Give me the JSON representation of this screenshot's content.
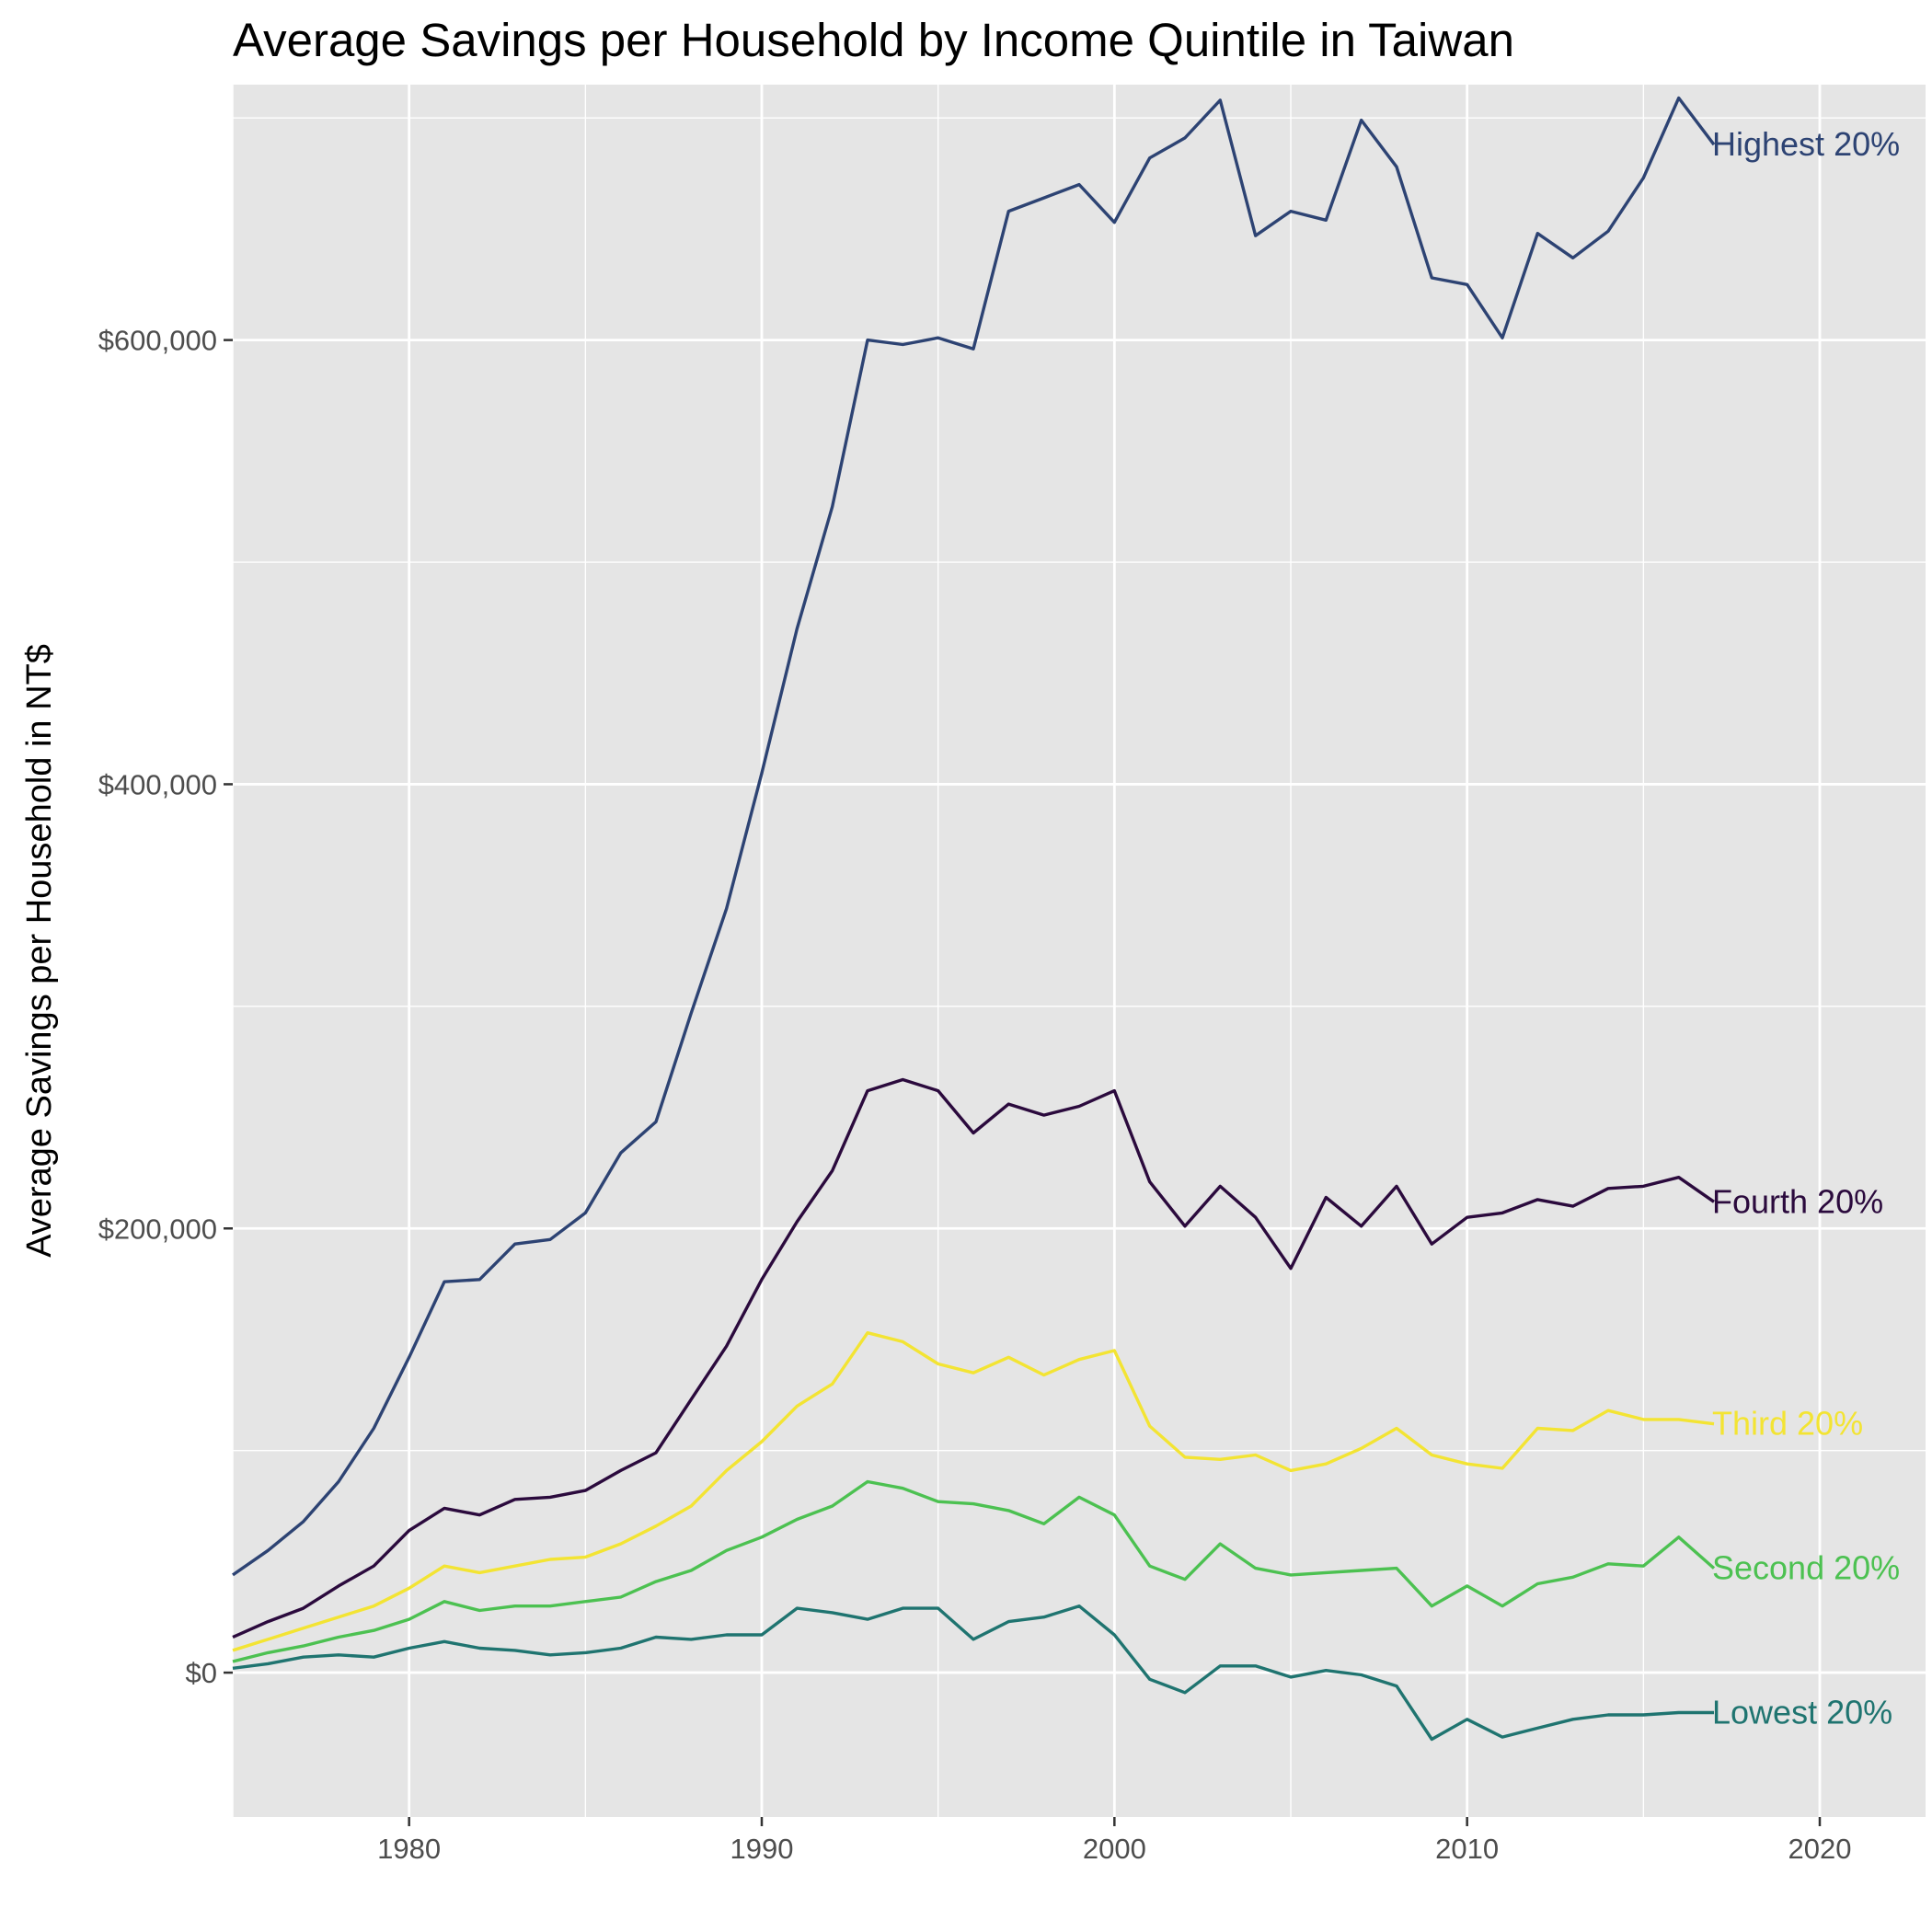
{
  "chart_data": {
    "type": "line",
    "title": "Average Savings per Household by Income Quintile in Taiwan",
    "xlabel": "",
    "ylabel": "Average Savings per Household in NT$",
    "xlim": [
      1975,
      2023
    ],
    "ylim": [
      -65000,
      715000
    ],
    "x_ticks": [
      1980,
      1990,
      2000,
      2010,
      2020
    ],
    "x_tick_labels": [
      "1980",
      "1990",
      "2000",
      "2010",
      "2020"
    ],
    "y_ticks": [
      0,
      200000,
      400000,
      600000
    ],
    "y_tick_labels": [
      "$0",
      "$200,000",
      "$400,000",
      "$600,000"
    ],
    "grid": true,
    "legend": "direct labels at line ends",
    "x": [
      1975,
      1976,
      1977,
      1978,
      1979,
      1980,
      1981,
      1982,
      1983,
      1984,
      1985,
      1986,
      1987,
      1988,
      1989,
      1990,
      1991,
      1992,
      1993,
      1994,
      1995,
      1996,
      1997,
      1998,
      1999,
      2000,
      2001,
      2002,
      2003,
      2004,
      2005,
      2006,
      2007,
      2008,
      2009,
      2010,
      2011,
      2012,
      2013,
      2014,
      2015,
      2016,
      2017
    ],
    "series": [
      {
        "name": "Highest 20%",
        "label": "Highest 20%",
        "color": "#2d4373",
        "values": [
          44000,
          55000,
          68000,
          86000,
          110000,
          142000,
          176000,
          177000,
          193000,
          195000,
          207000,
          234000,
          248000,
          297000,
          344000,
          405000,
          470000,
          525000,
          600000,
          598000,
          601000,
          596000,
          658000,
          664000,
          670000,
          653000,
          682000,
          691000,
          708000,
          647000,
          658000,
          654000,
          699000,
          678000,
          628000,
          625000,
          601000,
          648000,
          637000,
          649000,
          673000,
          709000,
          688000
        ]
      },
      {
        "name": "Fourth 20%",
        "label": "Fourth 20%",
        "color": "#2b0a3d",
        "values": [
          16000,
          23000,
          29000,
          39000,
          48000,
          64000,
          74000,
          71000,
          78000,
          79000,
          82000,
          91000,
          99000,
          123000,
          147000,
          177000,
          203000,
          226000,
          262000,
          267000,
          262000,
          243000,
          256000,
          251000,
          255000,
          262000,
          221000,
          201000,
          219000,
          205000,
          182000,
          214000,
          201000,
          219000,
          193000,
          205000,
          207000,
          213000,
          210000,
          218000,
          219000,
          223000,
          212000
        ]
      },
      {
        "name": "Third 20%",
        "label": "Third 20%",
        "color": "#f3e433",
        "values": [
          10000,
          15000,
          20000,
          25000,
          30000,
          38000,
          48000,
          45000,
          48000,
          51000,
          52000,
          58000,
          66000,
          75000,
          91000,
          104000,
          120000,
          130000,
          153000,
          149000,
          139000,
          135000,
          142000,
          134000,
          141000,
          145000,
          111000,
          97000,
          96000,
          98000,
          91000,
          94000,
          101000,
          110000,
          98000,
          94000,
          92000,
          110000,
          109000,
          118000,
          114000,
          114000,
          112000
        ]
      },
      {
        "name": "Second 20%",
        "label": "Second 20%",
        "color": "#4cc151",
        "values": [
          5000,
          9000,
          12000,
          16000,
          19000,
          24000,
          32000,
          28000,
          30000,
          30000,
          32000,
          34000,
          41000,
          46000,
          55000,
          61000,
          69000,
          75000,
          86000,
          83000,
          77000,
          76000,
          73000,
          67000,
          79000,
          71000,
          48000,
          42000,
          58000,
          47000,
          44000,
          45000,
          46000,
          47000,
          30000,
          39000,
          30000,
          40000,
          43000,
          49000,
          48000,
          61000,
          47000
        ]
      },
      {
        "name": "Lowest 20%",
        "label": "Lowest 20%",
        "color": "#1f7470",
        "values": [
          2000,
          4000,
          7000,
          8000,
          7000,
          11000,
          14000,
          11000,
          10000,
          8000,
          9000,
          11000,
          16000,
          15000,
          17000,
          17000,
          29000,
          27000,
          24000,
          29000,
          29000,
          15000,
          23000,
          25000,
          30000,
          17000,
          -3000,
          -9000,
          3000,
          3000,
          -2000,
          1000,
          -1000,
          -6000,
          -30000,
          -21000,
          -29000,
          -25000,
          -21000,
          -19000,
          -19000,
          -18000,
          -18000
        ]
      }
    ]
  }
}
